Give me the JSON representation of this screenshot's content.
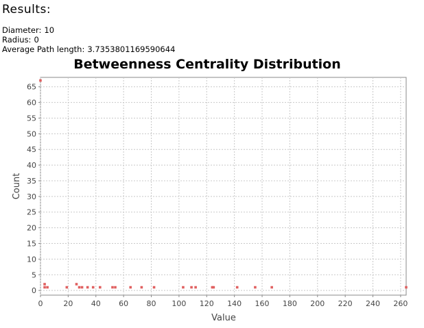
{
  "results": {
    "heading": "Results:",
    "metrics": [
      {
        "label": "Diameter:",
        "value": "10"
      },
      {
        "label": "Radius:",
        "value": "0"
      },
      {
        "label": "Average Path length:",
        "value": "3.7353801169590644"
      }
    ]
  },
  "chart_data": {
    "type": "scatter",
    "title": "Betweenness Centrality Distribution",
    "xlabel": "Value",
    "ylabel": "Count",
    "xlim": [
      0,
      264
    ],
    "ylim": [
      -1.5,
      68
    ],
    "xticks": [
      0,
      20,
      40,
      60,
      80,
      100,
      120,
      140,
      160,
      180,
      200,
      220,
      240,
      260
    ],
    "yticks": [
      0,
      5,
      10,
      15,
      20,
      25,
      30,
      35,
      40,
      45,
      50,
      55,
      60,
      65
    ],
    "grid": true,
    "legend": "none",
    "point_color": "#e06060",
    "x": [
      0,
      3,
      3,
      5,
      19,
      26,
      28,
      30,
      34,
      38,
      43,
      52,
      54,
      65,
      73,
      82,
      103,
      109,
      112,
      124,
      125,
      142,
      155,
      167,
      264
    ],
    "y": [
      67,
      2,
      1,
      1,
      1,
      2,
      1,
      1,
      1,
      1,
      1,
      1,
      1,
      1,
      1,
      1,
      1,
      1,
      1,
      1,
      1,
      1,
      1,
      1,
      1
    ]
  }
}
